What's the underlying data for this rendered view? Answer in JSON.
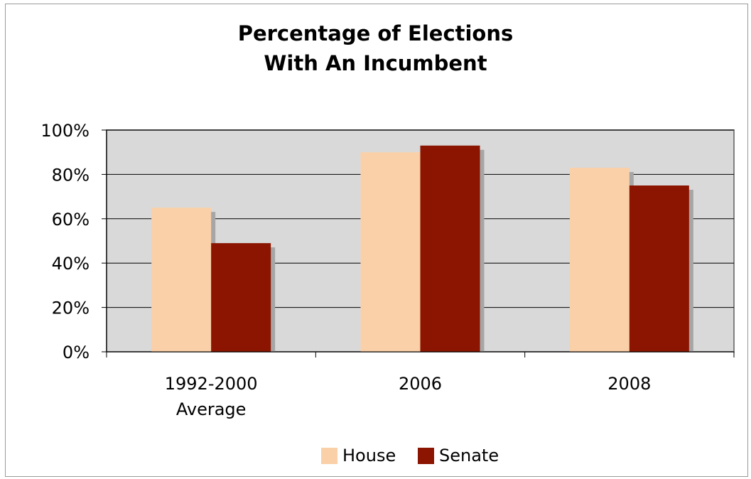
{
  "chart_data": {
    "type": "bar",
    "title_lines": [
      "Percentage of Elections",
      "With An Incumbent"
    ],
    "categories": [
      [
        "1992-2000",
        "Average"
      ],
      [
        "2006"
      ],
      [
        "2008"
      ]
    ],
    "series": [
      {
        "name": "House",
        "color": "#FAD0A8",
        "values": [
          65,
          90,
          83
        ]
      },
      {
        "name": "Senate",
        "color": "#8B1500",
        "values": [
          49,
          93,
          75
        ]
      }
    ],
    "ylim": [
      0,
      100
    ],
    "yticks": [
      "0%",
      "20%",
      "40%",
      "60%",
      "80%",
      "100%"
    ],
    "ytick_values": [
      0,
      20,
      40,
      60,
      80,
      100
    ],
    "grid": true,
    "legend_position": "bottom",
    "plot_background": "#D9D9D9",
    "shadow_color": "#A6A6A6"
  }
}
